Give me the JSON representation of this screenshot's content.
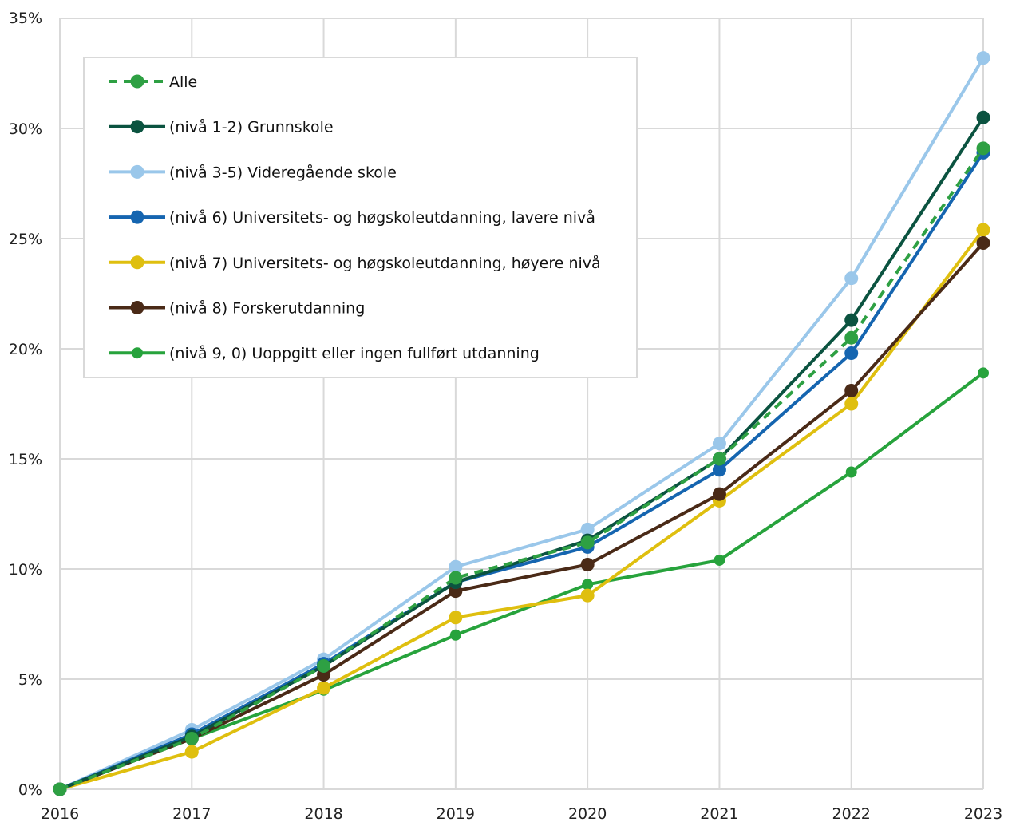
{
  "chart_data": {
    "type": "line",
    "title": "",
    "xlabel": "",
    "ylabel": "",
    "x": [
      "2016",
      "2017",
      "2018",
      "2019",
      "2020",
      "2021",
      "2022",
      "2023"
    ],
    "ylim": [
      0,
      35
    ],
    "yticks": [
      0,
      5,
      10,
      15,
      20,
      25,
      30,
      35
    ],
    "ytick_labels": [
      "0%",
      "5%",
      "10%",
      "15%",
      "20%",
      "25%",
      "30%",
      "35%"
    ],
    "grid": true,
    "legend_position": "top-left",
    "series": [
      {
        "name": "Alle",
        "color": "#2ea043",
        "dashed": true,
        "values": [
          0,
          2.3,
          5.6,
          9.6,
          11.2,
          15.0,
          20.5,
          29.1
        ]
      },
      {
        "name": "(nivå 1-2) Grunnskole",
        "color": "#0b5340",
        "dashed": false,
        "values": [
          0,
          2.4,
          5.6,
          9.4,
          11.3,
          15.0,
          21.3,
          30.5
        ]
      },
      {
        "name": "(nivå 3-5) Videregående skole",
        "color": "#9ac7ea",
        "dashed": false,
        "values": [
          0,
          2.7,
          5.9,
          10.1,
          11.8,
          15.7,
          23.2,
          33.2
        ]
      },
      {
        "name": "(nivå 6) Universitets- og høgskoleutdanning, lavere nivå",
        "color": "#1565b0",
        "dashed": false,
        "values": [
          0,
          2.5,
          5.7,
          9.4,
          11.0,
          14.5,
          19.8,
          28.9
        ]
      },
      {
        "name": "(nivå 7) Universitets- og høgskoleutdanning, høyere nivå",
        "color": "#dfbf0f",
        "dashed": false,
        "values": [
          0,
          1.7,
          4.6,
          7.8,
          8.8,
          13.1,
          17.5,
          25.4
        ]
      },
      {
        "name": "(nivå 8) Forskerutdanning",
        "color": "#4a2a17",
        "dashed": false,
        "values": [
          0,
          2.3,
          5.2,
          9.0,
          10.2,
          13.4,
          18.1,
          24.8
        ]
      },
      {
        "name": "(nivå 9, 0) Uoppgitt eller ingen fullført utdanning",
        "color": "#27a33c",
        "dashed": false,
        "values": [
          0,
          2.3,
          4.5,
          7.0,
          9.3,
          10.4,
          14.4,
          18.9
        ]
      }
    ]
  }
}
